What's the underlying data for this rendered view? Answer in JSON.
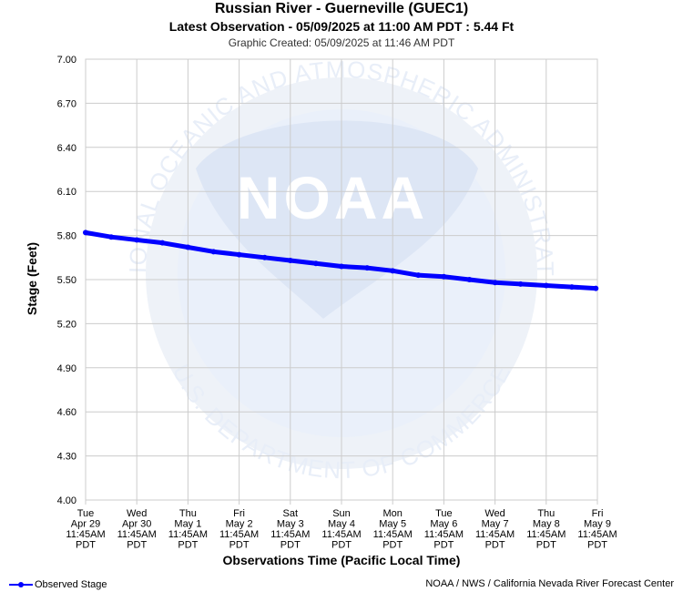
{
  "header": {
    "title": "Russian River - Guerneville (GUEC1)",
    "latest": "Latest Observation - 05/09/2025 at 11:00 AM PDT : 5.44 Ft",
    "created": "Graphic Created: 05/09/2025 at 11:46 AM PDT"
  },
  "watermark": {
    "text_top": "NATIONAL OCEANIC AND ATMOSPHERIC ADMINISTRATION",
    "text_bottom": "U.S. DEPARTMENT OF COMMERCE",
    "logo": "NOAA"
  },
  "footer": {
    "credit": "NOAA / NWS / California Nevada River Forecast Center"
  },
  "colors": {
    "series": "#0000ff",
    "grid": "#cccccc",
    "watermark": "#e8eef8"
  },
  "chart_data": {
    "type": "line",
    "title": "Russian River - Guerneville (GUEC1)",
    "xlabel": "Observations Time (Pacific Local Time)",
    "ylabel": "Stage (Feet)",
    "ylim": [
      4.0,
      7.0
    ],
    "yticks": [
      "7.00",
      "6.70",
      "6.40",
      "6.10",
      "5.80",
      "5.50",
      "5.20",
      "4.90",
      "4.60",
      "4.30",
      "4.00"
    ],
    "xlim": [
      "2025-04-29 11:45",
      "2025-05-09 11:45"
    ],
    "xticks": [
      [
        "Tue",
        "Apr 29",
        "11:45AM",
        "PDT"
      ],
      [
        "Wed",
        "Apr 30",
        "11:45AM",
        "PDT"
      ],
      [
        "Thu",
        "May 1",
        "11:45AM",
        "PDT"
      ],
      [
        "Fri",
        "May 2",
        "11:45AM",
        "PDT"
      ],
      [
        "Sat",
        "May 3",
        "11:45AM",
        "PDT"
      ],
      [
        "Sun",
        "May 4",
        "11:45AM",
        "PDT"
      ],
      [
        "Mon",
        "May 5",
        "11:45AM",
        "PDT"
      ],
      [
        "Tue",
        "May 6",
        "11:45AM",
        "PDT"
      ],
      [
        "Wed",
        "May 7",
        "11:45AM",
        "PDT"
      ],
      [
        "Thu",
        "May 8",
        "11:45AM",
        "PDT"
      ],
      [
        "Fri",
        "May 9",
        "11:45AM",
        "PDT"
      ]
    ],
    "grid": true,
    "legend_position": "bottom-left",
    "series": [
      {
        "name": "Observed Stage",
        "x": [
          "2025-04-29 11:45",
          "2025-04-29 23:45",
          "2025-04-30 11:45",
          "2025-04-30 23:45",
          "2025-05-01 11:45",
          "2025-05-01 23:45",
          "2025-05-02 11:45",
          "2025-05-02 23:45",
          "2025-05-03 11:45",
          "2025-05-03 23:45",
          "2025-05-04 11:45",
          "2025-05-04 23:45",
          "2025-05-05 11:45",
          "2025-05-05 23:45",
          "2025-05-06 11:45",
          "2025-05-06 23:45",
          "2025-05-07 11:45",
          "2025-05-07 23:45",
          "2025-05-08 11:45",
          "2025-05-08 23:45",
          "2025-05-09 11:00"
        ],
        "y": [
          5.82,
          5.79,
          5.77,
          5.75,
          5.72,
          5.69,
          5.67,
          5.65,
          5.63,
          5.61,
          5.59,
          5.58,
          5.56,
          5.53,
          5.52,
          5.5,
          5.48,
          5.47,
          5.46,
          5.45,
          5.44
        ]
      }
    ]
  }
}
